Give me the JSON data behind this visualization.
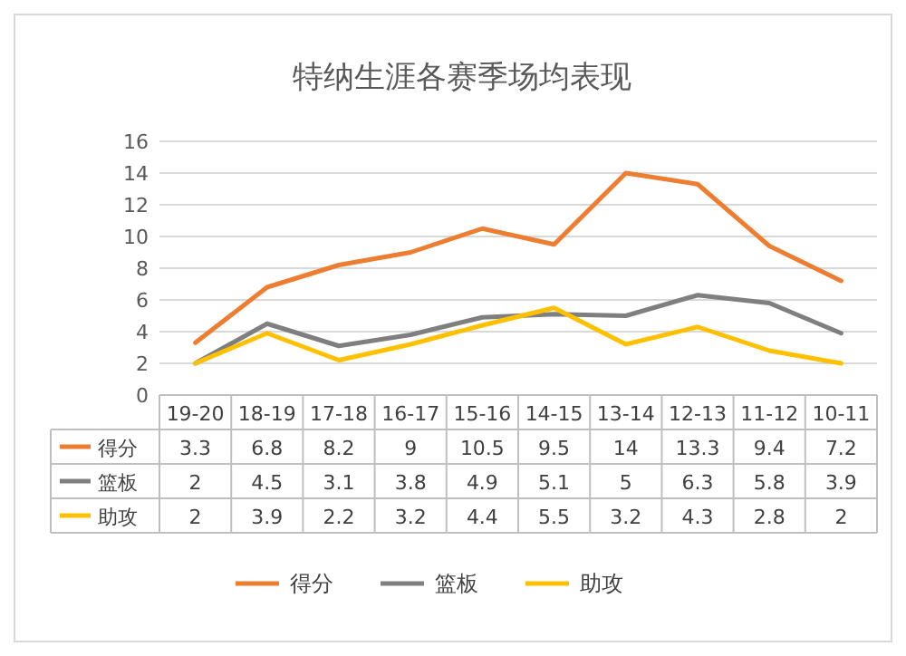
{
  "chart_data": {
    "type": "line",
    "title": "特纳生涯各赛季场均表现",
    "categories": [
      "19-20",
      "18-19",
      "17-18",
      "16-17",
      "15-16",
      "14-15",
      "13-14",
      "12-13",
      "11-12",
      "10-11"
    ],
    "series": [
      {
        "name": "得分",
        "color": "#ed7d31",
        "values": [
          3.3,
          6.8,
          8.2,
          9,
          10.5,
          9.5,
          14,
          13.3,
          9.4,
          7.2
        ]
      },
      {
        "name": "篮板",
        "color": "#7f7f7f",
        "values": [
          2,
          4.5,
          3.1,
          3.8,
          4.9,
          5.1,
          5,
          6.3,
          5.8,
          3.9
        ]
      },
      {
        "name": "助攻",
        "color": "#ffc000",
        "values": [
          2,
          3.9,
          2.2,
          3.2,
          4.4,
          5.5,
          3.2,
          4.3,
          2.8,
          2
        ]
      }
    ],
    "ylim": [
      0,
      16
    ],
    "yticks": [
      0,
      2,
      4,
      6,
      8,
      10,
      12,
      14,
      16
    ],
    "grid": "y",
    "legend": "bottom",
    "data_labels": true
  }
}
